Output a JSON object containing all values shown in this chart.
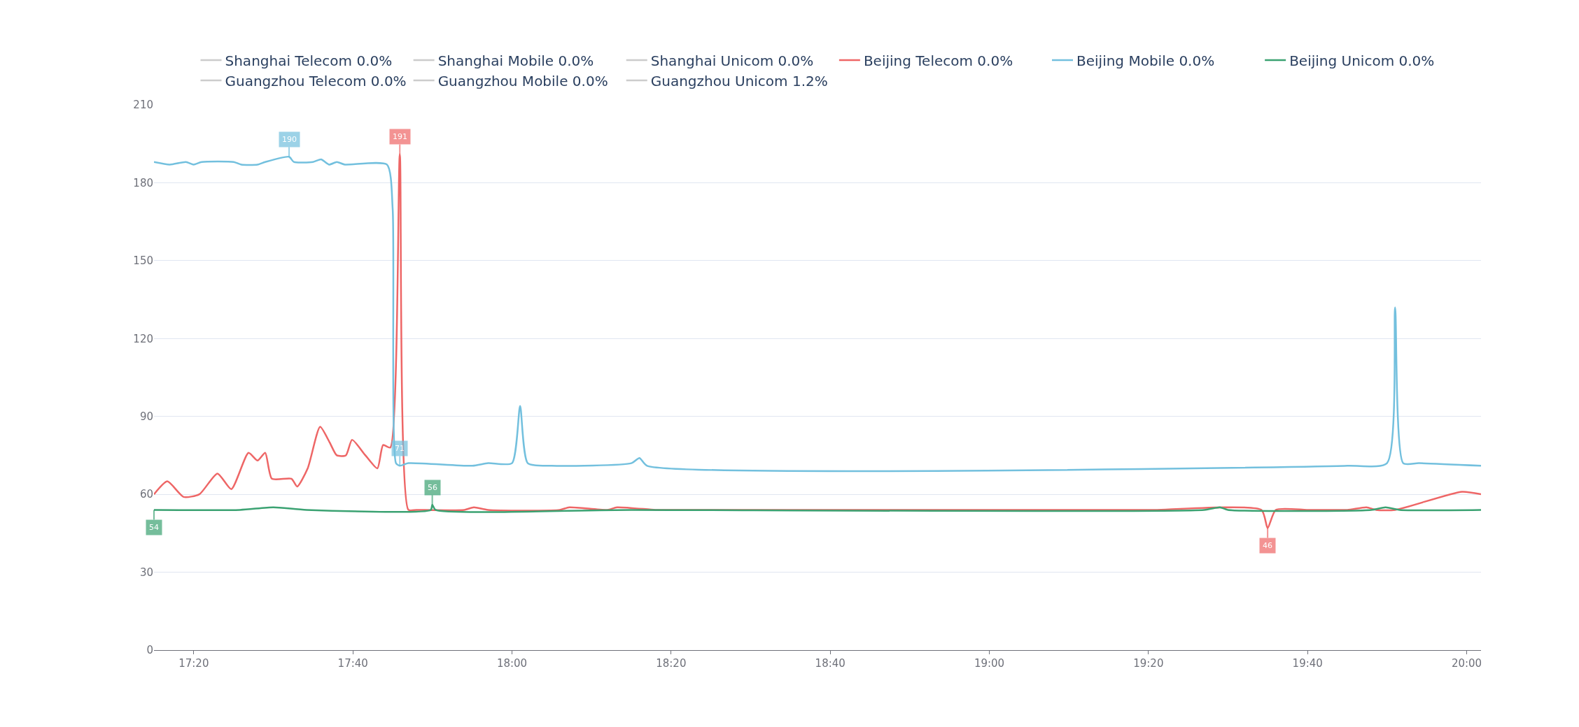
{
  "chart_data": {
    "type": "line",
    "xlim": [
      17.25,
      20.03
    ],
    "xticks": [
      {
        "value": 17.3333,
        "label": "17:20"
      },
      {
        "value": 17.6667,
        "label": "17:40"
      },
      {
        "value": 18,
        "label": "18:00"
      },
      {
        "value": 18.3333,
        "label": "18:20"
      },
      {
        "value": 18.6667,
        "label": "18:40"
      },
      {
        "value": 19,
        "label": "19:00"
      },
      {
        "value": 19.3333,
        "label": "19:20"
      },
      {
        "value": 19.6667,
        "label": "19:40"
      },
      {
        "value": 20,
        "label": "20:00"
      }
    ],
    "ylim": [
      0,
      210
    ],
    "yticks": [
      0,
      30,
      60,
      90,
      120,
      150,
      180,
      210
    ],
    "grid": "y",
    "legend": "top",
    "marker": "none",
    "line_style": "solid",
    "series": [
      {
        "name": "Shanghai Telecom 0.0%",
        "color": "#cccccc"
      },
      {
        "name": "Shanghai Mobile 0.0%",
        "color": "#cccccc"
      },
      {
        "name": "Shanghai Unicom 0.0%",
        "color": "#cccccc"
      },
      {
        "name": "Beijing Telecom 0.0%",
        "color": "#ee6666",
        "x": [
          17.25,
          17.278,
          17.312,
          17.345,
          17.383,
          17.412,
          17.448,
          17.467,
          17.483,
          17.497,
          17.538,
          17.55,
          17.572,
          17.598,
          17.618,
          17.633,
          17.652,
          17.665,
          17.693,
          17.718,
          17.73,
          17.745,
          17.765,
          17.783,
          17.8,
          17.9,
          17.92,
          17.95,
          18.1,
          18.12,
          18.2,
          18.22,
          18.3,
          18.32,
          19.33,
          19.35,
          19.57,
          19.583,
          19.6,
          19.665,
          19.7,
          19.75,
          19.79,
          19.81,
          19.85,
          19.99,
          20.03
        ],
        "values": [
          60,
          65,
          59,
          60,
          68,
          62,
          76,
          73,
          76,
          66,
          66,
          63,
          70,
          86,
          80,
          75,
          75,
          81,
          75,
          70,
          79,
          78,
          191,
          54,
          54,
          54,
          55,
          54,
          54,
          55,
          54,
          55,
          54,
          54,
          54,
          54,
          54,
          47,
          54,
          54,
          54,
          54,
          55,
          54,
          54,
          61,
          60
        ]
      },
      {
        "name": "Beijing Mobile 0.0%",
        "color": "#73c0de",
        "x": [
          17.25,
          17.283,
          17.317,
          17.333,
          17.35,
          17.417,
          17.433,
          17.467,
          17.483,
          17.533,
          17.543,
          17.583,
          17.6,
          17.617,
          17.633,
          17.65,
          17.738,
          17.75,
          17.757,
          17.765,
          17.783,
          17.917,
          17.95,
          18.0,
          18.017,
          18.033,
          18.083,
          18.25,
          18.267,
          18.283,
          19.75,
          19.833,
          19.85,
          19.867,
          19.9,
          20.03
        ],
        "values": [
          188,
          187,
          188,
          187,
          188,
          188,
          187,
          187,
          188,
          190,
          188,
          188,
          189,
          187,
          188,
          187,
          187,
          170,
          72,
          71,
          72,
          71,
          72,
          72,
          94,
          72,
          71,
          72,
          74,
          71,
          71,
          72,
          132,
          72,
          72,
          71
        ]
      },
      {
        "name": "Beijing Unicom 0.0%",
        "color": "#3ba272",
        "x": [
          17.25,
          17.43,
          17.5,
          17.57,
          17.83,
          17.833,
          17.84,
          18.25,
          19.45,
          19.483,
          19.5,
          19.8,
          19.83,
          19.86,
          20.03
        ],
        "values": [
          54,
          54,
          55,
          54,
          54,
          56,
          54,
          54,
          54,
          55,
          54,
          54,
          55,
          54,
          54
        ]
      },
      {
        "name": "Guangzhou Telecom 0.0%",
        "color": "#cccccc"
      },
      {
        "name": "Guangzhou Mobile 0.0%",
        "color": "#cccccc"
      },
      {
        "name": "Guangzhou Unicom 1.2%",
        "color": "#cccccc"
      }
    ],
    "annotations": [
      {
        "text": "190",
        "x": 17.533,
        "y": 190
      },
      {
        "text": "191",
        "x": 17.765,
        "y": 191
      },
      {
        "text": "71",
        "x": 17.765,
        "y": 71
      },
      {
        "text": "56",
        "x": 17.833,
        "y": 56
      },
      {
        "text": "54",
        "x": 17.25,
        "y": 54
      },
      {
        "text": "46",
        "x": 19.583,
        "y": 47
      }
    ]
  }
}
